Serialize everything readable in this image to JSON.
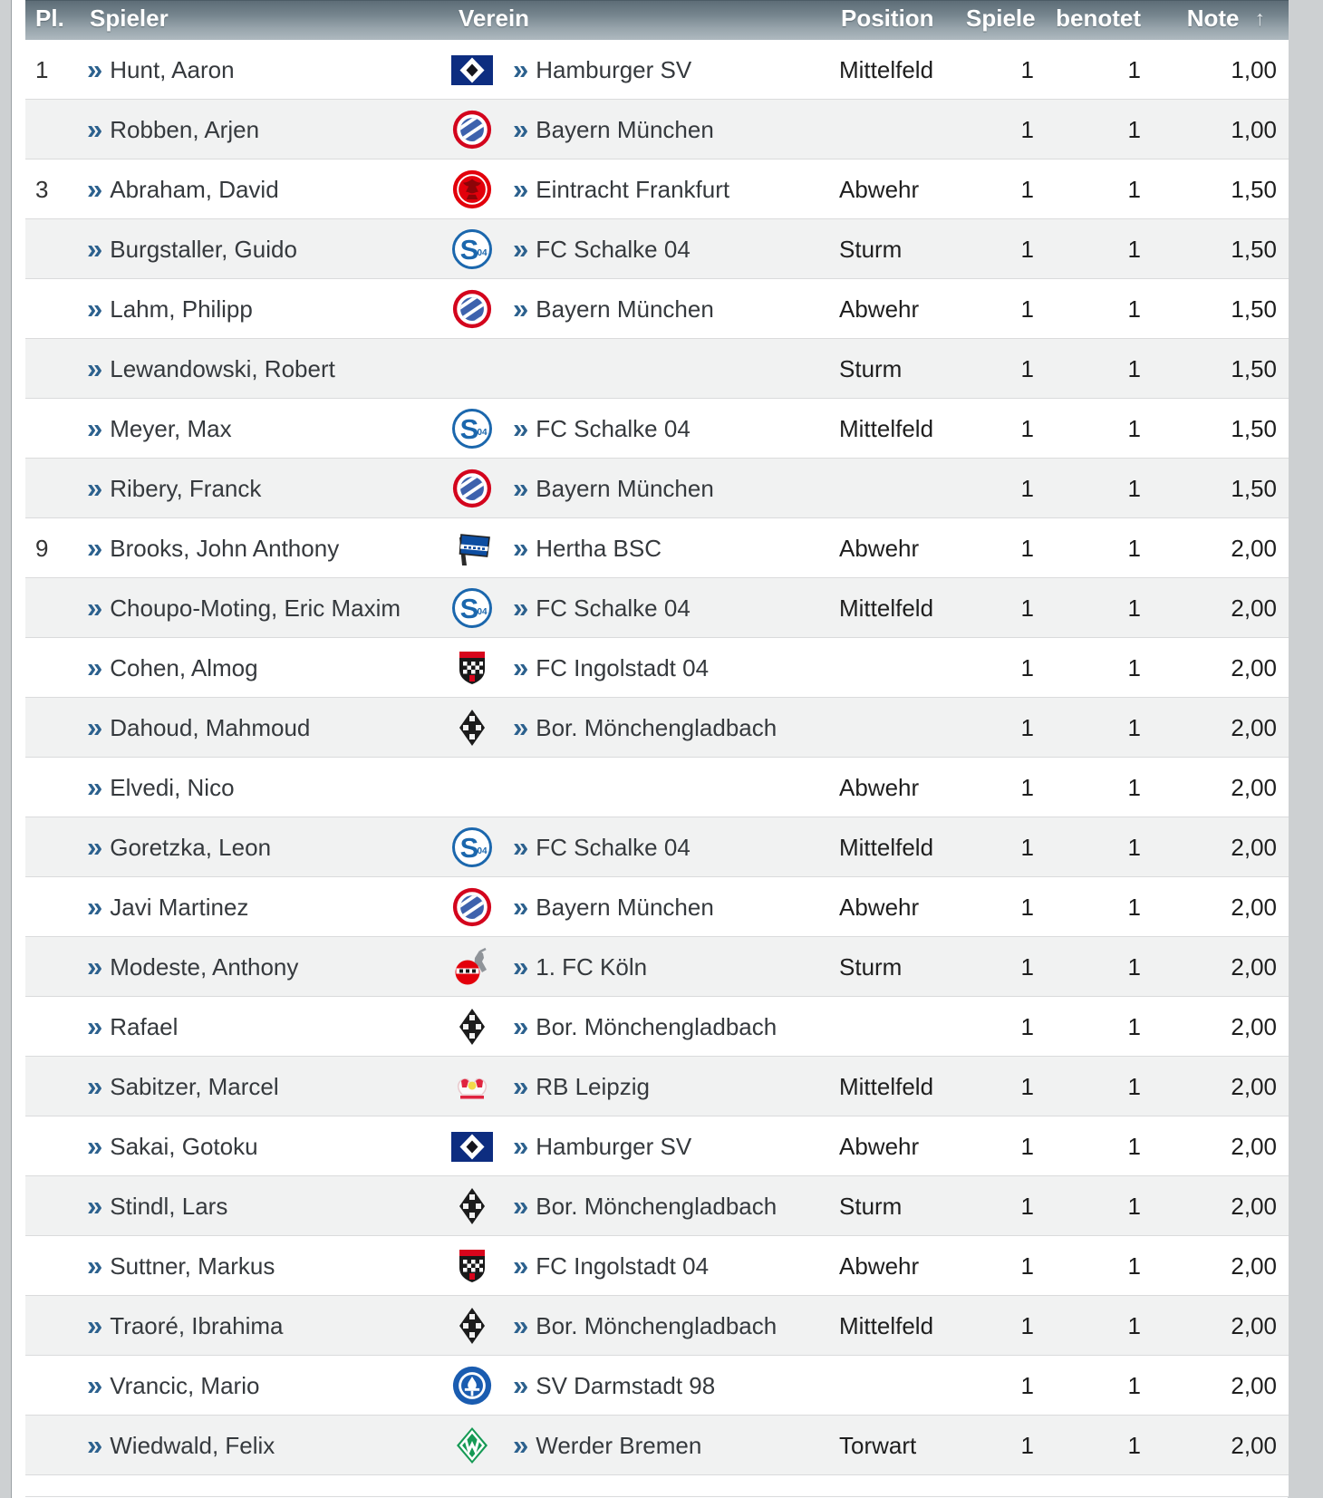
{
  "table": {
    "headers": {
      "pl": "Pl.",
      "spieler": "Spieler",
      "verein": "Verein",
      "position": "Position",
      "spiele": "Spiele",
      "benotet": "benotet",
      "note": "Note",
      "sort_icon": "up-arrow",
      "sort_glyph": "↑"
    },
    "link_arrow_glyph": "»",
    "rows": [
      {
        "rank": "1",
        "player": "Hunt, Aaron",
        "club": "Hamburger SV",
        "logo": "hamburger-sv",
        "position": "Mittelfeld",
        "spiele": "1",
        "benotet": "1",
        "note": "1,00"
      },
      {
        "rank": "",
        "player": "Robben, Arjen",
        "club": "Bayern München",
        "logo": "bayern-muenchen",
        "position": "",
        "spiele": "1",
        "benotet": "1",
        "note": "1,00"
      },
      {
        "rank": "3",
        "player": "Abraham, David",
        "club": "Eintracht Frankfurt",
        "logo": "eintracht-frankfurt",
        "position": "Abwehr",
        "spiele": "1",
        "benotet": "1",
        "note": "1,50"
      },
      {
        "rank": "",
        "player": "Burgstaller, Guido",
        "club": "FC Schalke 04",
        "logo": "fc-schalke-04",
        "position": "Sturm",
        "spiele": "1",
        "benotet": "1",
        "note": "1,50"
      },
      {
        "rank": "",
        "player": "Lahm, Philipp",
        "club": "Bayern München",
        "logo": "bayern-muenchen",
        "position": "Abwehr",
        "spiele": "1",
        "benotet": "1",
        "note": "1,50"
      },
      {
        "rank": "",
        "player": "Lewandowski, Robert",
        "club": "",
        "logo": "",
        "position": "Sturm",
        "spiele": "1",
        "benotet": "1",
        "note": "1,50"
      },
      {
        "rank": "",
        "player": "Meyer, Max",
        "club": "FC Schalke 04",
        "logo": "fc-schalke-04",
        "position": "Mittelfeld",
        "spiele": "1",
        "benotet": "1",
        "note": "1,50"
      },
      {
        "rank": "",
        "player": "Ribery, Franck",
        "club": "Bayern München",
        "logo": "bayern-muenchen",
        "position": "",
        "spiele": "1",
        "benotet": "1",
        "note": "1,50"
      },
      {
        "rank": "9",
        "player": "Brooks, John Anthony",
        "club": "Hertha BSC",
        "logo": "hertha-bsc",
        "position": "Abwehr",
        "spiele": "1",
        "benotet": "1",
        "note": "2,00"
      },
      {
        "rank": "",
        "player": "Choupo-Moting, Eric Maxim",
        "club": "FC Schalke 04",
        "logo": "fc-schalke-04",
        "position": "Mittelfeld",
        "spiele": "1",
        "benotet": "1",
        "note": "2,00"
      },
      {
        "rank": "",
        "player": "Cohen, Almog",
        "club": "FC Ingolstadt 04",
        "logo": "fc-ingolstadt-04",
        "position": "",
        "spiele": "1",
        "benotet": "1",
        "note": "2,00"
      },
      {
        "rank": "",
        "player": "Dahoud, Mahmoud",
        "club": "Bor. Mönchengladbach",
        "logo": "borussia-moenchengladbach",
        "position": "",
        "spiele": "1",
        "benotet": "1",
        "note": "2,00"
      },
      {
        "rank": "",
        "player": "Elvedi, Nico",
        "club": "",
        "logo": "",
        "position": "Abwehr",
        "spiele": "1",
        "benotet": "1",
        "note": "2,00"
      },
      {
        "rank": "",
        "player": "Goretzka, Leon",
        "club": "FC Schalke 04",
        "logo": "fc-schalke-04",
        "position": "Mittelfeld",
        "spiele": "1",
        "benotet": "1",
        "note": "2,00"
      },
      {
        "rank": "",
        "player": "Javi Martinez",
        "club": "Bayern München",
        "logo": "bayern-muenchen",
        "position": "Abwehr",
        "spiele": "1",
        "benotet": "1",
        "note": "2,00"
      },
      {
        "rank": "",
        "player": "Modeste, Anthony",
        "club": "1. FC Köln",
        "logo": "fc-koeln",
        "position": "Sturm",
        "spiele": "1",
        "benotet": "1",
        "note": "2,00"
      },
      {
        "rank": "",
        "player": "Rafael",
        "club": "Bor. Mönchengladbach",
        "logo": "borussia-moenchengladbach",
        "position": "",
        "spiele": "1",
        "benotet": "1",
        "note": "2,00"
      },
      {
        "rank": "",
        "player": "Sabitzer, Marcel",
        "club": "RB Leipzig",
        "logo": "rb-leipzig",
        "position": "Mittelfeld",
        "spiele": "1",
        "benotet": "1",
        "note": "2,00"
      },
      {
        "rank": "",
        "player": "Sakai, Gotoku",
        "club": "Hamburger SV",
        "logo": "hamburger-sv",
        "position": "Abwehr",
        "spiele": "1",
        "benotet": "1",
        "note": "2,00"
      },
      {
        "rank": "",
        "player": "Stindl, Lars",
        "club": "Bor. Mönchengladbach",
        "logo": "borussia-moenchengladbach",
        "position": "Sturm",
        "spiele": "1",
        "benotet": "1",
        "note": "2,00"
      },
      {
        "rank": "",
        "player": "Suttner, Markus",
        "club": "FC Ingolstadt 04",
        "logo": "fc-ingolstadt-04",
        "position": "Abwehr",
        "spiele": "1",
        "benotet": "1",
        "note": "2,00"
      },
      {
        "rank": "",
        "player": "Traoré, Ibrahima",
        "club": "Bor. Mönchengladbach",
        "logo": "borussia-moenchengladbach",
        "position": "Mittelfeld",
        "spiele": "1",
        "benotet": "1",
        "note": "2,00"
      },
      {
        "rank": "",
        "player": "Vrancic, Mario",
        "club": "SV Darmstadt 98",
        "logo": "sv-darmstadt-98",
        "position": "",
        "spiele": "1",
        "benotet": "1",
        "note": "2,00"
      },
      {
        "rank": "",
        "player": "Wiedwald, Felix",
        "club": "Werder Bremen",
        "logo": "werder-bremen",
        "position": "Torwart",
        "spiele": "1",
        "benotet": "1",
        "note": "2,00"
      }
    ]
  },
  "colors": {
    "header_gradient_top": "#5d6d77",
    "header_gradient_bottom": "#aeb9bf",
    "row_alt": "#f1f2f2",
    "row_border": "#dadbdc",
    "link_text": "#35393d",
    "link_arrow": "#2c618e",
    "page_background": "#cdd0d2"
  }
}
